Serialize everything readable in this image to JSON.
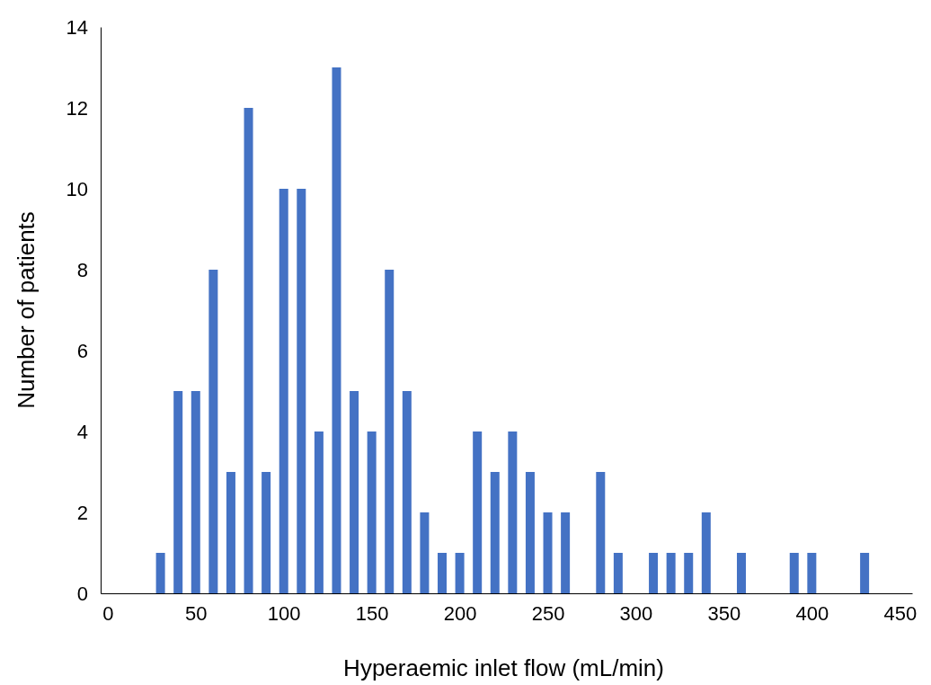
{
  "chart_data": {
    "type": "bar",
    "xlabel": "Hyperaemic inlet flow (mL/min)",
    "ylabel": "Number of patients",
    "x": [
      30,
      40,
      50,
      60,
      70,
      80,
      90,
      100,
      110,
      120,
      130,
      140,
      150,
      160,
      170,
      180,
      190,
      200,
      210,
      220,
      230,
      240,
      250,
      260,
      280,
      290,
      310,
      320,
      330,
      340,
      360,
      390,
      400,
      430
    ],
    "values": [
      1,
      5,
      5,
      8,
      3,
      12,
      3,
      10,
      10,
      4,
      13,
      5,
      4,
      8,
      5,
      2,
      1,
      1,
      4,
      3,
      4,
      3,
      2,
      2,
      3,
      1,
      1,
      1,
      1,
      2,
      1,
      1,
      1,
      1
    ],
    "color": "#4472c4",
    "xlim": [
      -4,
      457
    ],
    "xticks": [
      0,
      50,
      100,
      150,
      200,
      250,
      300,
      350,
      400,
      450
    ],
    "ylim": [
      0,
      14
    ],
    "yticks": [
      0,
      2,
      4,
      6,
      8,
      10,
      12,
      14
    ],
    "grid": false
  }
}
